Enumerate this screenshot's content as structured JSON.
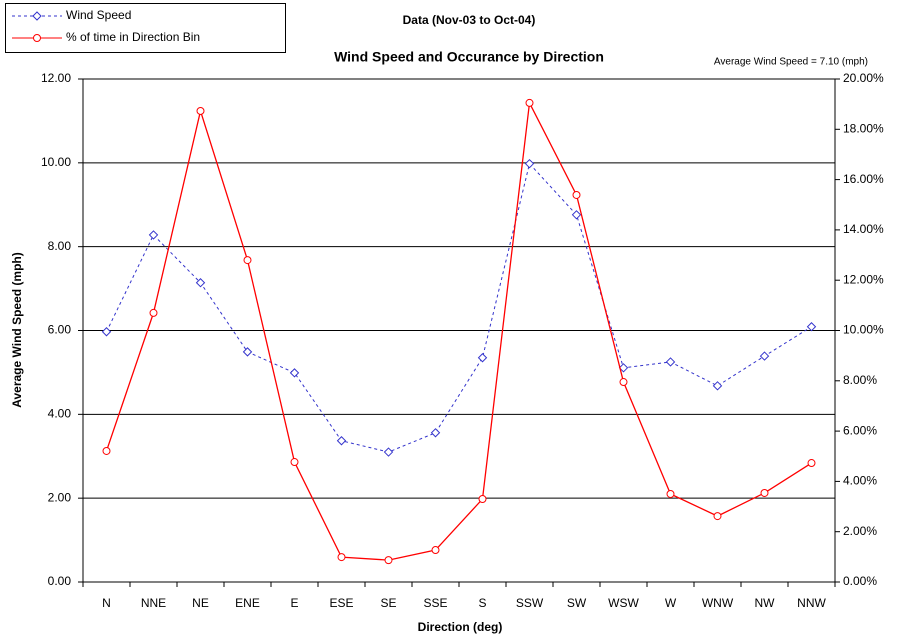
{
  "chart_data": {
    "type": "line",
    "title": "Wind Speed and Occurance by Direction",
    "subtitle": "Data (Nov-03 to Oct-04)",
    "annotation": "Average Wind Speed = 7.10 (mph)",
    "x_label": "Direction (deg)",
    "y_label": "Average Wind Speed (mph)",
    "categories": [
      "N",
      "NNE",
      "NE",
      "ENE",
      "E",
      "ESE",
      "SE",
      "SSE",
      "S",
      "SSW",
      "SW",
      "WSW",
      "W",
      "WNW",
      "NW",
      "NNW"
    ],
    "series": [
      {
        "name": "Wind Speed",
        "color": "#3333cc",
        "marker": "diamond",
        "dashed": true,
        "values": [
          5.97,
          8.28,
          7.14,
          5.49,
          4.99,
          3.37,
          3.1,
          3.56,
          5.35,
          9.98,
          8.76,
          5.11,
          5.25,
          4.68,
          5.39,
          6.09
        ]
      },
      {
        "name": "% of time in Direction Bin",
        "color": "#ff0000",
        "marker": "circle",
        "dashed": false,
        "axis": "y2",
        "values": [
          5.21,
          10.7,
          18.73,
          12.8,
          4.77,
          0.99,
          0.87,
          1.27,
          3.3,
          19.05,
          15.39,
          7.95,
          3.5,
          2.62,
          3.54,
          4.73
        ]
      }
    ],
    "ylim": [
      0,
      12
    ],
    "yticks": [
      {
        "value": 0,
        "label": "0.00"
      },
      {
        "value": 2,
        "label": "2.00"
      },
      {
        "value": 4,
        "label": "4.00"
      },
      {
        "value": 6,
        "label": "6.00"
      },
      {
        "value": 8,
        "label": "8.00"
      },
      {
        "value": 10,
        "label": "10.00"
      },
      {
        "value": 12,
        "label": "12.00"
      }
    ],
    "y2lim": [
      0,
      20
    ],
    "y2ticks": [
      {
        "value": 0,
        "label": "0.00%"
      },
      {
        "value": 2,
        "label": "2.00%"
      },
      {
        "value": 4,
        "label": "4.00%"
      },
      {
        "value": 6,
        "label": "6.00%"
      },
      {
        "value": 8,
        "label": "8.00%"
      },
      {
        "value": 10,
        "label": "10.00%"
      },
      {
        "value": 12,
        "label": "12.00%"
      },
      {
        "value": 14,
        "label": "14.00%"
      },
      {
        "value": 16,
        "label": "16.00%"
      },
      {
        "value": 18,
        "label": "18.00%"
      },
      {
        "value": 20,
        "label": "20.00%"
      }
    ],
    "grid": true
  }
}
